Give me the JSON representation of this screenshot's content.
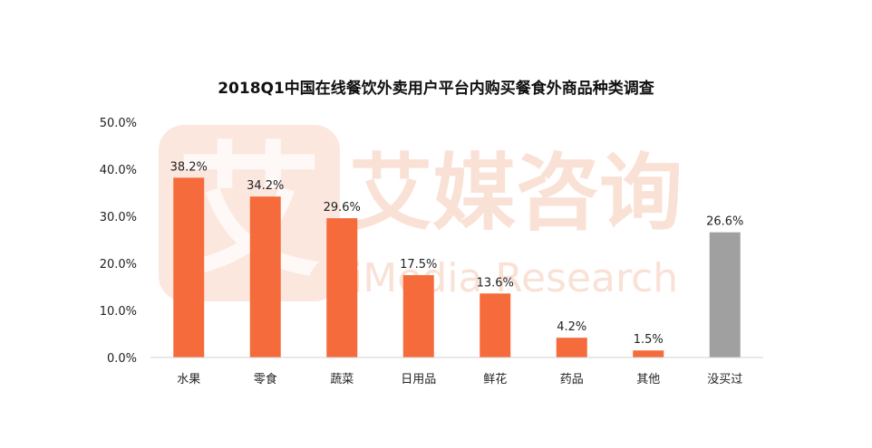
{
  "chart_data": {
    "type": "bar",
    "title": "2018Q1中国在线餐饮外卖用户平台内购买餐食外商品种类调查",
    "categories": [
      "水果",
      "零食",
      "蔬菜",
      "日用品",
      "鲜花",
      "药品",
      "其他",
      "没买过"
    ],
    "values": [
      38.2,
      34.2,
      29.6,
      17.5,
      13.6,
      4.2,
      1.5,
      26.6
    ],
    "value_labels": [
      "38.2%",
      "34.2%",
      "29.6%",
      "17.5%",
      "13.6%",
      "4.2%",
      "1.5%",
      "26.6%"
    ],
    "bar_colors": [
      "#f56b3b",
      "#f56b3b",
      "#f56b3b",
      "#f56b3b",
      "#f56b3b",
      "#f56b3b",
      "#f56b3b",
      "#a0a0a0"
    ],
    "ylim": [
      0,
      50
    ],
    "yticks": [
      "0.0%",
      "10.0%",
      "20.0%",
      "30.0%",
      "40.0%",
      "50.0%"
    ],
    "xlabel": "",
    "ylabel": "",
    "grid": false,
    "legend": "none"
  },
  "watermark": {
    "logo_glyph": "艾",
    "brand_cn": "艾媒咨询",
    "brand_en": "iMedia Research",
    "color": "#f6c9b5"
  }
}
